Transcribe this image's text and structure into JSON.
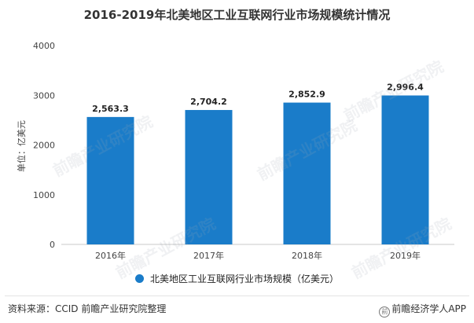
{
  "chart_data": {
    "type": "bar",
    "title": "2016-2019年北美地区工业互联网行业市场规模统计情况",
    "categories": [
      "2016年",
      "2017年",
      "2018年",
      "2019年"
    ],
    "series": [
      {
        "name": "北美地区工业互联网行业市场规模（亿美元）",
        "values": [
          2563.3,
          2704.2,
          2852.9,
          2996.4
        ],
        "labels": [
          "2,563.3",
          "2,704.2",
          "2,852.9",
          "2,996.4"
        ]
      }
    ],
    "ylabel": "单位：亿美元",
    "ylim": [
      0,
      4000
    ],
    "yticks": [
      0,
      1000,
      2000,
      3000,
      4000
    ],
    "grid": false,
    "legend_position": "bottom",
    "colors": {
      "bar": "#1a7cc9",
      "axis": "#c8c8c8",
      "text": "#444444"
    }
  },
  "footer": {
    "source": "资料来源：CCID 前瞻产业研究院整理",
    "credit": "前瞻经济学人APP"
  },
  "watermark": "前瞻产业研究院"
}
